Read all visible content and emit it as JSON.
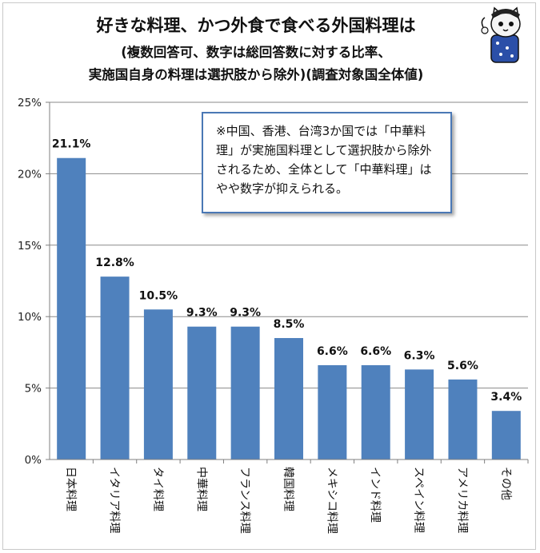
{
  "title_line1": "好きな料理、かつ外食で食べる外国料理は",
  "title_line2": "(複数回答可、数字は総回答数に対する比率、",
  "title_line3": "実施国自身の料理は選択肢から除外)(調査対象国全体値)",
  "note": "※中国、香港、台湾3か国では「中華料理」が実施国料理として選択肢から除外されるため、全体として「中華料理」はやや数字が抑えられる。",
  "mascot_icon": "cat-mascot-icon",
  "colors": {
    "bar": "#4f81bd",
    "grid": "#8a8a8a",
    "axis": "#7f7f7f"
  },
  "chart_data": {
    "type": "bar",
    "title": "好きな料理、かつ外食で食べる外国料理は",
    "categories": [
      "日本料理",
      "イタリア料理",
      "タイ料理",
      "中華料理",
      "フランス料理",
      "韓国料理",
      "メキシコ料理",
      "インド料理",
      "スペイン料理",
      "アメリカ料理",
      "その他"
    ],
    "values": [
      21.1,
      12.8,
      10.5,
      9.3,
      9.3,
      8.5,
      6.6,
      6.6,
      6.3,
      5.6,
      3.4
    ],
    "data_labels": [
      "21.1%",
      "12.8%",
      "10.5%",
      "9.3%",
      "9.3%",
      "8.5%",
      "6.6%",
      "6.6%",
      "6.3%",
      "5.6%",
      "3.4%"
    ],
    "ylim": [
      0,
      25
    ],
    "yticks": [
      0,
      5,
      10,
      15,
      20,
      25
    ],
    "ytick_labels": [
      "0%",
      "5%",
      "10%",
      "15%",
      "20%",
      "25%"
    ],
    "grid": true,
    "legend": "none"
  }
}
